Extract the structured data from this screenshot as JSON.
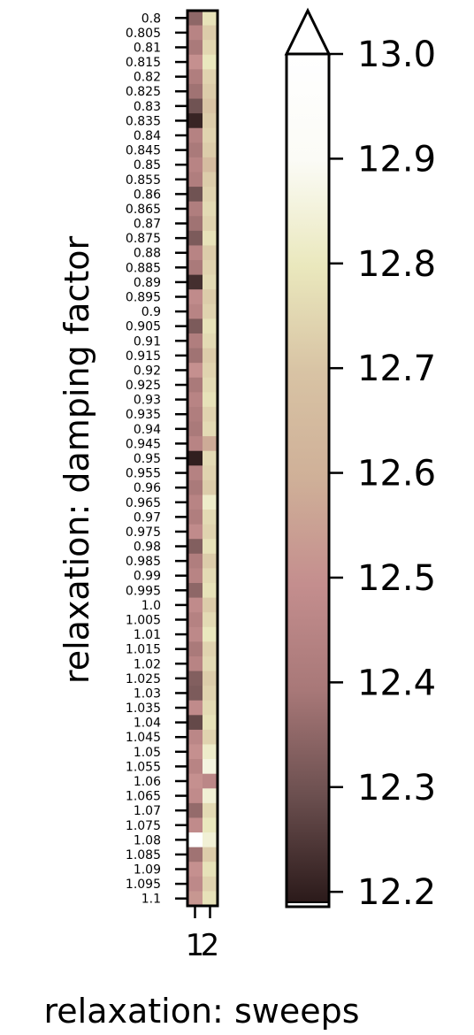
{
  "chart_data": [
    {
      "type": "heatmap",
      "xlabel": "relaxation: sweeps",
      "ylabel": "relaxation: damping factor",
      "x_categories": [
        "1",
        "2"
      ],
      "y_categories": [
        "0.8",
        "0.805",
        "0.81",
        "0.815",
        "0.82",
        "0.825",
        "0.83",
        "0.835",
        "0.84",
        "0.845",
        "0.85",
        "0.855",
        "0.86",
        "0.865",
        "0.87",
        "0.875",
        "0.88",
        "0.885",
        "0.89",
        "0.895",
        "0.9",
        "0.905",
        "0.91",
        "0.915",
        "0.92",
        "0.925",
        "0.93",
        "0.935",
        "0.94",
        "0.945",
        "0.95",
        "0.955",
        "0.96",
        "0.965",
        "0.97",
        "0.975",
        "0.98",
        "0.985",
        "0.99",
        "0.995",
        "1.0",
        "1.005",
        "1.01",
        "1.015",
        "1.02",
        "1.025",
        "1.03",
        "1.035",
        "1.04",
        "1.045",
        "1.05",
        "1.055",
        "1.06",
        "1.065",
        "1.07",
        "1.075",
        "1.08",
        "1.085",
        "1.09",
        "1.095",
        "1.1"
      ],
      "values_sweep1": [
        12.35,
        12.45,
        12.4,
        12.5,
        12.42,
        12.38,
        12.3,
        12.21,
        12.44,
        12.4,
        12.45,
        12.42,
        12.3,
        12.42,
        12.38,
        12.32,
        12.45,
        12.4,
        12.23,
        12.48,
        12.45,
        12.32,
        12.42,
        12.38,
        12.5,
        12.4,
        12.45,
        12.42,
        12.4,
        12.45,
        12.2,
        12.44,
        12.4,
        12.45,
        12.42,
        12.48,
        12.33,
        12.42,
        12.45,
        12.35,
        12.48,
        12.44,
        12.47,
        12.4,
        12.45,
        12.33,
        12.32,
        12.48,
        12.28,
        12.46,
        12.5,
        12.45,
        12.5,
        12.48,
        12.36,
        12.48,
        13.0,
        12.38,
        12.5,
        12.47,
        12.52
      ],
      "values_sweep2": [
        12.78,
        12.72,
        12.75,
        12.8,
        12.74,
        12.72,
        12.7,
        12.72,
        12.74,
        12.72,
        12.66,
        12.72,
        12.74,
        12.76,
        12.74,
        12.78,
        12.72,
        12.74,
        12.76,
        12.72,
        12.74,
        12.78,
        12.76,
        12.72,
        12.74,
        12.76,
        12.78,
        12.74,
        12.76,
        12.58,
        12.76,
        12.74,
        12.72,
        12.82,
        12.76,
        12.74,
        12.78,
        12.72,
        12.76,
        12.78,
        12.72,
        12.76,
        12.8,
        12.74,
        12.76,
        12.72,
        12.74,
        12.76,
        12.78,
        12.74,
        12.82,
        12.86,
        12.46,
        12.84,
        12.76,
        12.8,
        12.84,
        12.72,
        12.78,
        12.74,
        12.78
      ],
      "colorbar": {
        "min": 12.19,
        "max": 13.0,
        "extend": "max",
        "ticks": [
          "12.2",
          "12.3",
          "12.4",
          "12.5",
          "12.6",
          "12.7",
          "12.8",
          "12.9",
          "13.0"
        ],
        "tick_values": [
          12.2,
          12.3,
          12.4,
          12.5,
          12.6,
          12.7,
          12.8,
          12.9,
          13.0
        ],
        "colormap": [
          "#2b1a1a",
          "#6b4f4f",
          "#a87878",
          "#c48e8e",
          "#cfb098",
          "#d8c3a4",
          "#eae8bd",
          "#fbfbf6",
          "#ffffff"
        ]
      }
    }
  ]
}
